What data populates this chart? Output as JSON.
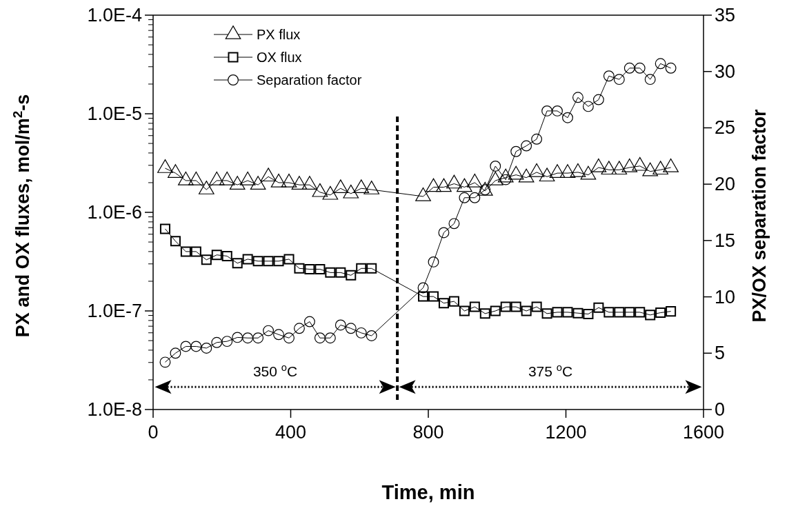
{
  "chart_data": {
    "type": "line",
    "xlabel": "Time, min",
    "ylabel": "PX and OX fluxes, mol/m$^{2}$-s",
    "y2label": "PX/OX separation factor",
    "x": [
      35,
      65,
      95,
      125,
      155,
      185,
      215,
      245,
      275,
      305,
      335,
      365,
      395,
      425,
      455,
      485,
      515,
      545,
      575,
      605,
      635,
      785,
      815,
      845,
      875,
      905,
      935,
      965,
      995,
      1025,
      1055,
      1085,
      1115,
      1145,
      1175,
      1205,
      1235,
      1265,
      1295,
      1325,
      1355,
      1385,
      1415,
      1445,
      1475,
      1505
    ],
    "series": [
      {
        "name": "PX flux",
        "color": "#000000",
        "marker": "triangle",
        "values": [
          2.8e-06,
          2.5e-06,
          2.1e-06,
          2.1e-06,
          1.7e-06,
          2.1e-06,
          2.1e-06,
          1.9e-06,
          2.1e-06,
          1.9e-06,
          2.3e-06,
          2e-06,
          2e-06,
          1.9e-06,
          1.9e-06,
          1.6e-06,
          1.5e-06,
          1.75e-06,
          1.55e-06,
          1.75e-06,
          1.7e-06,
          1.45e-06,
          1.8e-06,
          1.8e-06,
          1.95e-06,
          1.8e-06,
          2e-06,
          1.65e-06,
          2.1e-06,
          2.25e-06,
          2.4e-06,
          2.25e-06,
          2.55e-06,
          2.3e-06,
          2.5e-06,
          2.5e-06,
          2.55e-06,
          2.4e-06,
          2.85e-06,
          2.7e-06,
          2.7e-06,
          2.85e-06,
          2.95e-06,
          2.6e-06,
          2.7e-06,
          2.85e-06
        ]
      },
      {
        "name": "OX flux",
        "color": "#000000",
        "marker": "square",
        "values": [
          6.8e-07,
          5.1e-07,
          4e-07,
          4e-07,
          3.3e-07,
          3.7e-07,
          3.6e-07,
          3.05e-07,
          3.35e-07,
          3.2e-07,
          3.2e-07,
          3.2e-07,
          3.35e-07,
          2.7e-07,
          2.65e-07,
          2.65e-07,
          2.45e-07,
          2.45e-07,
          2.3e-07,
          2.7e-07,
          2.7e-07,
          1.4e-07,
          1.4e-07,
          1.2e-07,
          1.25e-07,
          1e-07,
          1.1e-07,
          9.4e-08,
          1e-07,
          1.1e-07,
          1.1e-07,
          1e-07,
          1.1e-07,
          9.4e-08,
          9.7e-08,
          9.7e-08,
          9.5e-08,
          9.3e-08,
          1.08e-07,
          9.7e-08,
          9.7e-08,
          9.7e-08,
          9.7e-08,
          9.1e-08,
          9.6e-08,
          9.9e-08
        ]
      },
      {
        "name": "Separation factor",
        "color": "#000000",
        "marker": "circle",
        "axis": "y2",
        "values": [
          4.2,
          5.0,
          5.6,
          5.6,
          5.45,
          5.95,
          6.05,
          6.4,
          6.35,
          6.35,
          7.0,
          6.65,
          6.35,
          7.2,
          7.8,
          6.35,
          6.35,
          7.5,
          7.2,
          6.8,
          6.55,
          10.8,
          13.1,
          15.7,
          16.5,
          18.8,
          18.8,
          19.5,
          21.6,
          20.4,
          22.9,
          23.4,
          24.0,
          26.5,
          26.5,
          25.9,
          27.7,
          26.9,
          27.5,
          29.6,
          29.3,
          30.3,
          30.3,
          29.3,
          30.7,
          30.3
        ]
      }
    ],
    "xlim": [
      0,
      1600
    ],
    "xticks": [
      0,
      400,
      800,
      1200,
      1600
    ],
    "log": "y",
    "ylim": [
      1e-08,
      0.0001
    ],
    "yticks": [
      {
        "value": 1e-08,
        "label": "1.0E-8"
      },
      {
        "value": 1e-07,
        "label": "1.0E-7"
      },
      {
        "value": 1e-06,
        "label": "1.0E-6"
      },
      {
        "value": 1e-05,
        "label": "1.0E-5"
      },
      {
        "value": 0.0001,
        "label": "1.0E-4"
      }
    ],
    "y2lim": [
      0,
      35
    ],
    "y2ticks": [
      0,
      5,
      10,
      15,
      20,
      25,
      30,
      35
    ],
    "ref_lines": [
      {
        "axis": "x",
        "value": 710,
        "color": "#000000",
        "line_style": "dashed"
      }
    ],
    "annotations": [
      "350 $^{o}$C",
      "375 $^{o}$C"
    ],
    "legend": "top left",
    "grid": false,
    "line_style": "solid"
  }
}
